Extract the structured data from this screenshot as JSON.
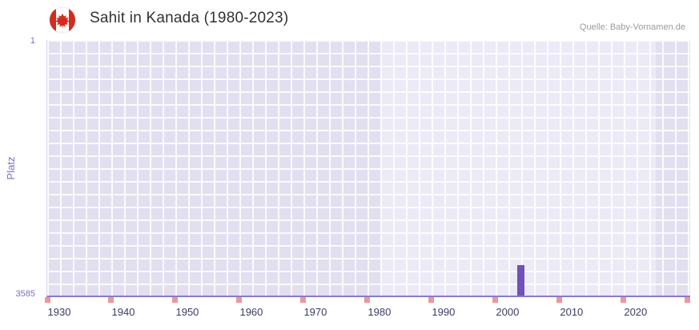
{
  "header": {
    "title": "Sahit in Kanada (1980-2023)",
    "source": "Quelle: Baby-Vornamen.de"
  },
  "chart_data": {
    "type": "bar",
    "title": "Sahit in Kanada (1980-2023)",
    "source": "Quelle: Baby-Vornamen.de",
    "xlabel": "",
    "ylabel": "Platz",
    "y_axis": {
      "min": 1,
      "max": 3585,
      "inverted": true,
      "top_tick": "1",
      "bottom_tick": "3585"
    },
    "x_axis": {
      "min": 1928,
      "max": 2028.4,
      "ticks": [
        1930,
        1940,
        1950,
        1960,
        1970,
        1980,
        1990,
        2000,
        2010,
        2020
      ]
    },
    "highlight_range": [
      1980,
      2023
    ],
    "series": [
      {
        "name": "Sahit",
        "color": "#7052b8",
        "points": [
          {
            "year": 2002,
            "rank": 3160
          }
        ]
      }
    ],
    "baseline_marks": {
      "color": "#f0959f",
      "years": [
        1928,
        1938,
        1948,
        1958,
        1968,
        1978,
        1988,
        1998,
        2008,
        2018,
        2028
      ]
    },
    "grid": true,
    "legend": false
  },
  "colors": {
    "plot_bg": "#e2dff0",
    "plot_highlight": "#eceaf7",
    "grid_line": "#ffffff",
    "axis_line": "#877ace",
    "bar": "#7052b8",
    "baseline_mark": "#f0959f",
    "flag_red": "#d52b1e"
  }
}
